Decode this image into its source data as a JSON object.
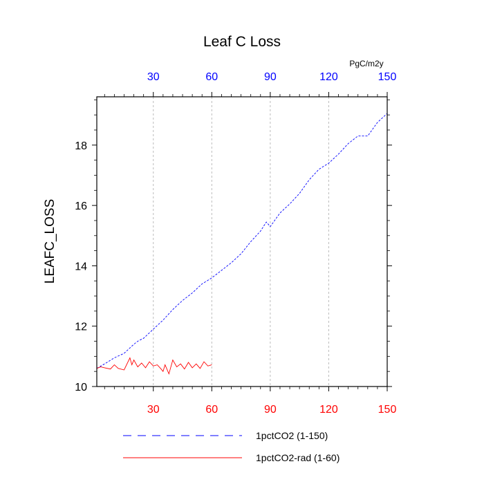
{
  "chart_data": {
    "type": "line",
    "title": "Leaf C Loss",
    "units": "PgC/m2y",
    "ylabel": "LEAFC_LOSS",
    "xlabel": "",
    "xlim": [
      1,
      150
    ],
    "ylim": [
      10,
      19.6
    ],
    "bottom_ticks": [
      30,
      60,
      90,
      120,
      150
    ],
    "top_ticks": [
      30,
      60,
      90,
      120,
      150
    ],
    "y_ticks": [
      10,
      12,
      14,
      16,
      18
    ],
    "grid_x": [
      30,
      60,
      90,
      120
    ],
    "legend_position": "bottom",
    "series": [
      {
        "name": "1pctCO2 (1-150)",
        "color": "#0000ff",
        "dash": "dashed",
        "x": [
          1,
          5,
          10,
          15,
          20,
          22,
          25,
          30,
          35,
          40,
          45,
          50,
          55,
          60,
          65,
          70,
          75,
          80,
          85,
          88,
          90,
          95,
          100,
          105,
          110,
          115,
          120,
          125,
          130,
          135,
          140,
          145,
          150
        ],
        "y": [
          10.6,
          10.75,
          10.95,
          11.1,
          11.4,
          11.5,
          11.6,
          11.9,
          12.2,
          12.55,
          12.85,
          13.1,
          13.4,
          13.6,
          13.85,
          14.1,
          14.4,
          14.8,
          15.15,
          15.45,
          15.3,
          15.75,
          16.05,
          16.4,
          16.85,
          17.2,
          17.4,
          17.7,
          18.05,
          18.3,
          18.3,
          18.75,
          19.05
        ]
      },
      {
        "name": "1pctCO2-rad (1-60)",
        "color": "#ff0000",
        "dash": "solid",
        "x": [
          1,
          3,
          5,
          8,
          10,
          12,
          15,
          18,
          19,
          20,
          22,
          24,
          26,
          28,
          30,
          32,
          34,
          35,
          36,
          38,
          40,
          42,
          44,
          46,
          48,
          50,
          52,
          54,
          56,
          58,
          60
        ],
        "y": [
          10.6,
          10.65,
          10.62,
          10.58,
          10.72,
          10.6,
          10.55,
          10.95,
          10.72,
          10.88,
          10.65,
          10.78,
          10.62,
          10.82,
          10.68,
          10.72,
          10.58,
          10.5,
          10.72,
          10.42,
          10.88,
          10.65,
          10.75,
          10.58,
          10.8,
          10.62,
          10.75,
          10.6,
          10.82,
          10.68,
          10.72
        ]
      }
    ]
  }
}
